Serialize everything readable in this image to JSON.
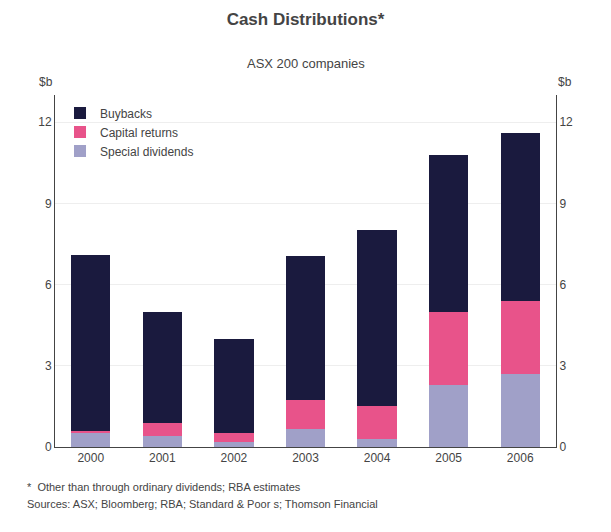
{
  "chart_data": {
    "type": "bar",
    "stacked": true,
    "title": "Cash Distributions*",
    "subtitle": "ASX 200 companies",
    "ylabel": "$b",
    "y2label": "$b",
    "annotations": [
      "*  Other than through ordinary dividends; RBA estimates",
      "Sources: ASX; Bloomberg; RBA; Standard & Poor s; Thomson Financial"
    ],
    "categories": [
      "2000",
      "2001",
      "2002",
      "2003",
      "2004",
      "2005",
      "2006"
    ],
    "series": [
      {
        "name": "Special dividends",
        "color": "#a0a0c8",
        "values": [
          0.55,
          0.4,
          0.2,
          0.65,
          0.3,
          2.3,
          2.7
        ]
      },
      {
        "name": "Capital returns",
        "color": "#e8538a",
        "values": [
          0.05,
          0.5,
          0.3,
          1.1,
          1.2,
          2.7,
          2.7
        ]
      },
      {
        "name": "Buybacks",
        "color": "#1a1a3e",
        "values": [
          6.5,
          4.1,
          3.5,
          5.3,
          6.5,
          5.8,
          6.2
        ]
      }
    ],
    "ylim": [
      0,
      13
    ],
    "yticks": [
      0,
      3,
      6,
      9,
      12
    ],
    "y2lim": [
      0,
      13
    ],
    "y2ticks": [
      0,
      3,
      6,
      9,
      12
    ],
    "grid": true,
    "legend": "upper left"
  }
}
